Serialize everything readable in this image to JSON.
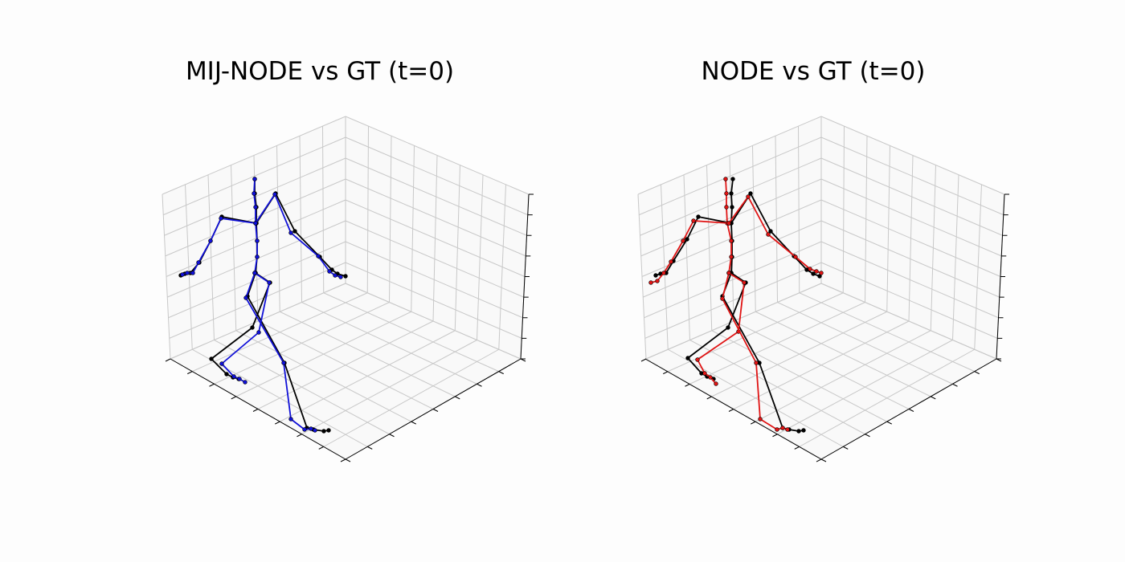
{
  "chart_data": [
    {
      "type": "line3d",
      "title": "MIJ-NODE vs GT (t=0)",
      "series": [
        {
          "color": "#000000",
          "polylines": [
            [
              [
                317,
                223
              ],
              [
                317,
                241
              ],
              [
                319,
                258
              ],
              [
                319,
                278
              ],
              [
                320,
                300
              ],
              [
                320,
                320
              ],
              [
                318,
                340
              ]
            ],
            [
              [
                319,
                278
              ],
              [
                276,
                270
              ],
              [
                262,
                300
              ],
              [
                248,
                327
              ],
              [
                237,
                340
              ],
              [
                230,
                341
              ],
              [
                225,
                343
              ]
            ],
            [
              [
                319,
                278
              ],
              [
                343,
                241
              ],
              [
                367,
                288
              ],
              [
                398,
                320
              ],
              [
                413,
                336
              ],
              [
                420,
                341
              ],
              [
                430,
                344
              ]
            ],
            [
              [
                318,
                340
              ],
              [
                336,
                352
              ],
              [
                314,
                408
              ],
              [
                263,
                447
              ],
              [
                282,
                466
              ],
              [
                290,
                470
              ],
              [
                297,
                472
              ]
            ],
            [
              [
                318,
                340
              ],
              [
                308,
                369
              ],
              [
                354,
                452
              ],
              [
                382,
                533
              ],
              [
                390,
                535
              ],
              [
                403,
                537
              ],
              [
                409,
                536
              ]
            ]
          ]
        },
        {
          "color": "#1010d8",
          "polylines": [
            [
              [
                317,
                223
              ],
              [
                316,
                241
              ],
              [
                318,
                258
              ],
              [
                318,
                278
              ],
              [
                320,
                300
              ],
              [
                320,
                320
              ],
              [
                317,
                340
              ]
            ],
            [
              [
                318,
                278
              ],
              [
                275,
                272
              ],
              [
                262,
                300
              ],
              [
                247,
                327
              ],
              [
                240,
                340
              ],
              [
                233,
                340
              ],
              [
                227,
                342
              ]
            ],
            [
              [
                318,
                278
              ],
              [
                342,
                242
              ],
              [
                362,
                290
              ],
              [
                396,
                319
              ],
              [
                410,
                338
              ],
              [
                417,
                343
              ],
              [
                424,
                345
              ]
            ],
            [
              [
                317,
                340
              ],
              [
                335,
                352
              ],
              [
                322,
                414
              ],
              [
                276,
                453
              ],
              [
                291,
                469
              ],
              [
                298,
                472
              ],
              [
                305,
                476
              ]
            ],
            [
              [
                317,
                340
              ],
              [
                306,
                371
              ],
              [
                353,
                452
              ],
              [
                362,
                522
              ],
              [
                379,
                535
              ],
              [
                387,
                534
              ],
              [
                392,
                536
              ]
            ]
          ]
        }
      ]
    },
    {
      "type": "line3d",
      "title": "NODE vs GT (t=0)",
      "series": [
        {
          "color": "#000000",
          "polylines": [
            [
              [
                912,
                223
              ],
              [
                910,
                241
              ],
              [
                911,
                258
              ],
              [
                910,
                278
              ],
              [
                911,
                300
              ],
              [
                911,
                320
              ],
              [
                910,
                340
              ]
            ],
            [
              [
                910,
                278
              ],
              [
                869,
                270
              ],
              [
                855,
                298
              ],
              [
                838,
                325
              ],
              [
                829,
                340
              ],
              [
                822,
                341
              ],
              [
                816,
                343
              ]
            ],
            [
              [
                910,
                278
              ],
              [
                934,
                241
              ],
              [
                959,
                288
              ],
              [
                988,
                319
              ],
              [
                1004,
                336
              ],
              [
                1012,
                341
              ],
              [
                1020,
                344
              ]
            ],
            [
              [
                910,
                340
              ],
              [
                928,
                352
              ],
              [
                906,
                408
              ],
              [
                856,
                446
              ],
              [
                873,
                465
              ],
              [
                880,
                469
              ],
              [
                888,
                472
              ]
            ],
            [
              [
                910,
                340
              ],
              [
                899,
                369
              ],
              [
                945,
                452
              ],
              [
                974,
                533
              ],
              [
                982,
                535
              ],
              [
                994,
                537
              ],
              [
                1000,
                536
              ]
            ]
          ]
        },
        {
          "color": "#e01414",
          "polylines": [
            [
              [
                903,
                223
              ],
              [
                904,
                241
              ],
              [
                904,
                258
              ],
              [
                905,
                278
              ],
              [
                910,
                300
              ],
              [
                910,
                320
              ],
              [
                907,
                340
              ]
            ],
            [
              [
                907,
                278
              ],
              [
                863,
                275
              ],
              [
                850,
                300
              ],
              [
                835,
                326
              ],
              [
                826,
                340
              ],
              [
                818,
                350
              ],
              [
                810,
                352
              ]
            ],
            [
              [
                907,
                278
              ],
              [
                931,
                245
              ],
              [
                956,
                292
              ],
              [
                990,
                320
              ],
              [
                1008,
                335
              ],
              [
                1016,
                338
              ],
              [
                1022,
                340
              ]
            ],
            [
              [
                907,
                340
              ],
              [
                926,
                352
              ],
              [
                919,
                413
              ],
              [
                868,
                448
              ],
              [
                877,
                465
              ],
              [
                884,
                470
              ],
              [
                891,
                478
              ]
            ],
            [
              [
                907,
                340
              ],
              [
                899,
                372
              ],
              [
                941,
                452
              ],
              [
                946,
                522
              ],
              [
                967,
                535
              ],
              [
                974,
                533
              ],
              [
                980,
                535
              ]
            ]
          ]
        }
      ]
    }
  ]
}
